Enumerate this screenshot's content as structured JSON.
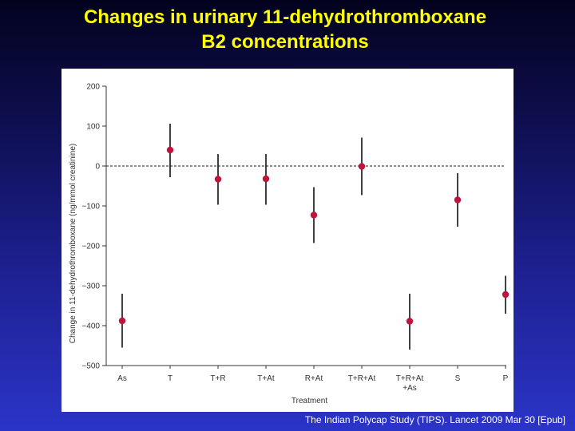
{
  "slide": {
    "title_line1": "Changes in urinary 11-dehydrothromboxane",
    "title_line2": "B2 concentrations",
    "citation": "The Indian Polycap Study (TIPS). Lancet 2009 Mar 30 [Epub]"
  },
  "chart_data": {
    "type": "scatter",
    "title": "Changes in urinary 11-dehydrothromboxane B2 concentrations",
    "xlabel": "Treatment",
    "ylabel": "Change in 11-dehydrothromboxane (ng/mmol creatinine)",
    "ylim": [
      -500,
      200
    ],
    "yticks": [
      200,
      100,
      0,
      -100,
      -200,
      -300,
      -400,
      -500
    ],
    "reference_line": 0,
    "categories": [
      [
        "As"
      ],
      [
        "T"
      ],
      [
        "T+R"
      ],
      [
        "T+At"
      ],
      [
        "R+At"
      ],
      [
        "T+R+At"
      ],
      [
        "T+R+At",
        "+As"
      ],
      [
        "S"
      ],
      [
        "P"
      ]
    ],
    "points": [
      {
        "estimate": -388,
        "lower": -455,
        "upper": -320
      },
      {
        "estimate": 40,
        "lower": -28,
        "upper": 106
      },
      {
        "estimate": -33,
        "lower": -97,
        "upper": 30
      },
      {
        "estimate": -32,
        "lower": -97,
        "upper": 30
      },
      {
        "estimate": -123,
        "lower": -193,
        "upper": -53
      },
      {
        "estimate": -1,
        "lower": -73,
        "upper": 71
      },
      {
        "estimate": -389,
        "lower": -460,
        "upper": -320
      },
      {
        "estimate": -85,
        "lower": -152,
        "upper": -18
      },
      {
        "estimate": -322,
        "lower": -370,
        "upper": -275
      }
    ],
    "colors": {
      "point": "#c0143c",
      "bar": "#111111",
      "axis": "#333333"
    },
    "grid": false
  }
}
